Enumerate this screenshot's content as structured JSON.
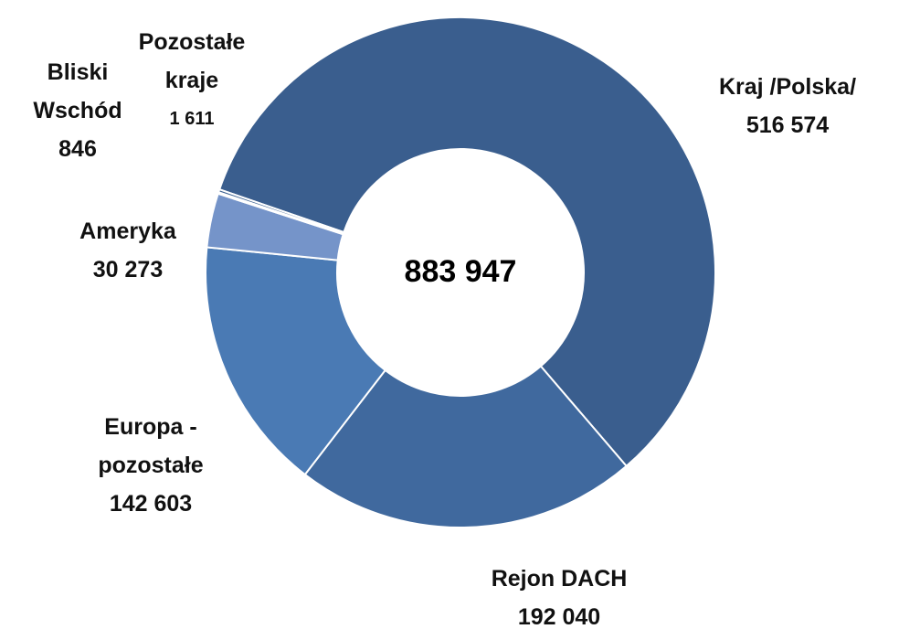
{
  "chart_data": {
    "type": "donut",
    "categories": [
      "Kraj /Polska/",
      "Rejon DACH",
      "Europa - pozostałe",
      "Ameryka",
      "Bliski Wschód",
      "Pozostałe kraje"
    ],
    "values": [
      516574,
      192040,
      142603,
      30273,
      846,
      1611
    ],
    "value_labels": [
      "516 574",
      "192 040",
      "142 603",
      "30 273",
      "846",
      "1 611"
    ],
    "colors": [
      "#3a5e8e",
      "#40699e",
      "#4a7ab4",
      "#7594c9",
      "#c3d0e6",
      "#3d6292"
    ],
    "center_label": "883 947"
  }
}
